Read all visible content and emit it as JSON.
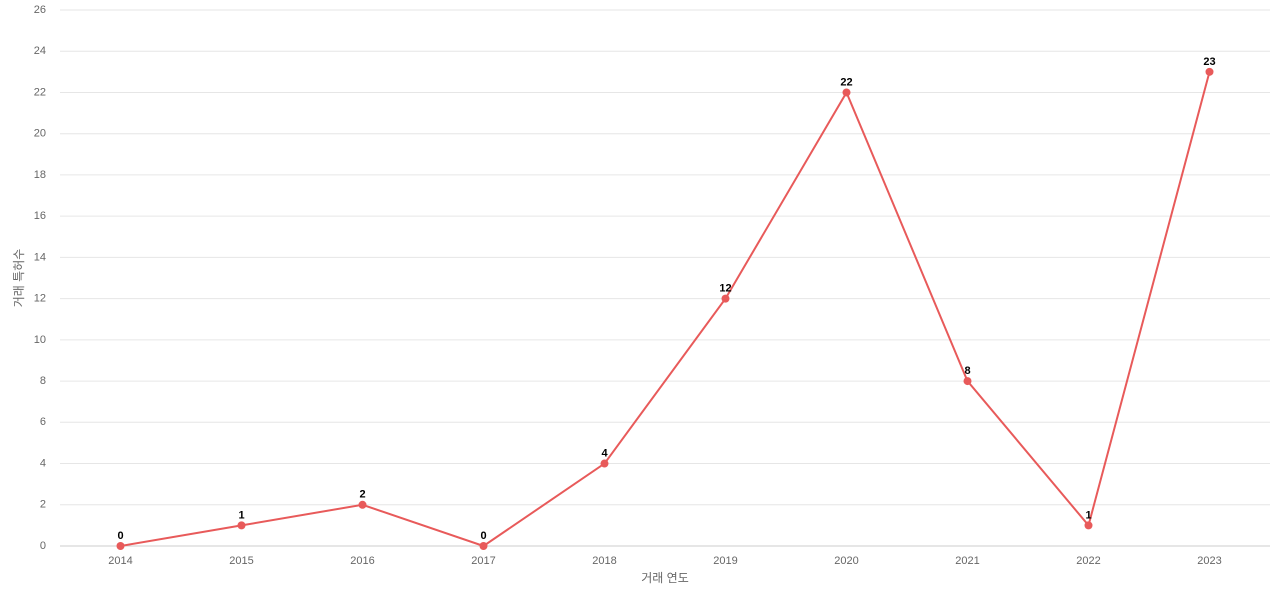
{
  "chart_data": {
    "type": "line",
    "x_label": "거래 연도",
    "y_label": "거래 특허수",
    "categories": [
      "2014",
      "2015",
      "2016",
      "2017",
      "2018",
      "2019",
      "2020",
      "2021",
      "2022",
      "2023"
    ],
    "series": [
      {
        "name": "거래 특허수",
        "color": "#e85a5a",
        "values": [
          0,
          1,
          2,
          0,
          4,
          12,
          22,
          8,
          1,
          23
        ]
      }
    ],
    "ylim": [
      0,
      26
    ],
    "yticks": [
      0,
      2,
      4,
      6,
      8,
      10,
      12,
      14,
      16,
      18,
      20,
      22,
      24,
      26
    ],
    "grid": true
  }
}
